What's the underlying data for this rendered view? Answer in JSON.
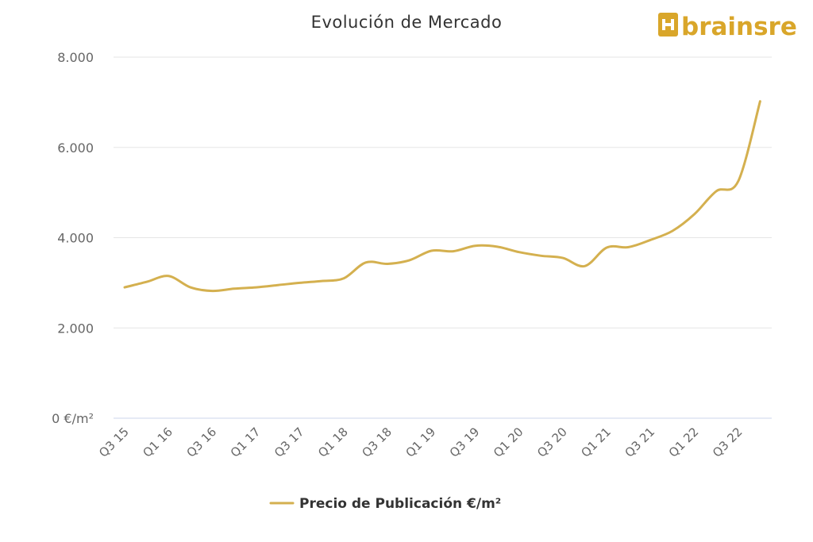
{
  "brand": {
    "name": "brainsre",
    "color": "#d9a62a"
  },
  "chart_data": {
    "type": "line",
    "title": "Evolución de Mercado",
    "categories": [
      "Q3 15",
      "Q4 15",
      "Q1 16",
      "Q2 16",
      "Q3 16",
      "Q4 16",
      "Q1 17",
      "Q2 17",
      "Q3 17",
      "Q4 17",
      "Q1 18",
      "Q2 18",
      "Q3 18",
      "Q4 18",
      "Q1 19",
      "Q2 19",
      "Q3 19",
      "Q4 19",
      "Q1 20",
      "Q2 20",
      "Q3 20",
      "Q4 20",
      "Q1 21",
      "Q2 21",
      "Q3 21",
      "Q4 21",
      "Q1 22",
      "Q2 22",
      "Q3 22",
      "Q4 22"
    ],
    "x_tick_labels": [
      "Q3 15",
      "Q1 16",
      "Q3 16",
      "Q1 17",
      "Q3 17",
      "Q1 18",
      "Q3 18",
      "Q1 19",
      "Q3 19",
      "Q1 20",
      "Q3 20",
      "Q1 21",
      "Q3 21",
      "Q1 22",
      "Q3 22"
    ],
    "series": [
      {
        "name": "Precio de Publicación €/m²",
        "color": "#d4b04f",
        "values": [
          2900,
          3020,
          3150,
          2900,
          2820,
          2870,
          2900,
          2950,
          3000,
          3040,
          3100,
          3450,
          3420,
          3500,
          3710,
          3700,
          3820,
          3800,
          3680,
          3600,
          3550,
          3370,
          3780,
          3790,
          3950,
          4150,
          4520,
          5030,
          5250,
          7020
        ]
      }
    ],
    "y_ticks": [
      0,
      2000,
      4000,
      6000,
      8000
    ],
    "y_tick_labels": [
      "0 €/m²",
      "2.000",
      "4.000",
      "6.000",
      "8.000"
    ],
    "ylim": [
      0,
      8000
    ],
    "grid": true,
    "legend": {
      "position": "bottom-center",
      "label": "Precio de Publicación €/m²"
    }
  }
}
